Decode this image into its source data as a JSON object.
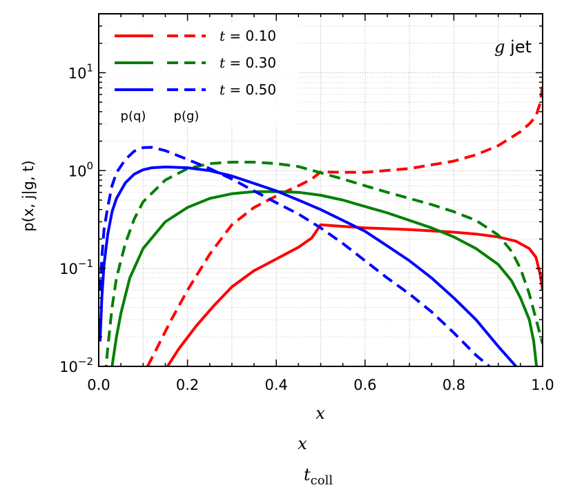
{
  "chart_data": {
    "type": "line",
    "title": "",
    "xlabel": "x",
    "ylabel": "p(x, j|g, t)",
    "xscale": "linear",
    "yscale": "log",
    "xlim": [
      0.0,
      1.0
    ],
    "ylim": [
      0.01,
      40
    ],
    "grid": true,
    "x_ticks": [
      0.0,
      0.2,
      0.4,
      0.6,
      0.8,
      1.0
    ],
    "x_tick_labels": [
      "0.0",
      "0.2",
      "0.4",
      "0.6",
      "0.8",
      "1.0"
    ],
    "y_ticks": [
      0.01,
      0.1,
      1,
      10
    ],
    "y_tick_labels": [
      {
        "base": "10",
        "exp": "−2"
      },
      {
        "base": "10",
        "exp": "−1"
      },
      {
        "base": "10",
        "exp": "0"
      },
      {
        "base": "10",
        "exp": "1"
      }
    ],
    "annotation": "g jet",
    "legend_position": "top-left",
    "legend_column_labels": [
      "p(q)",
      "p(g)"
    ],
    "extra_labels": [
      "x",
      "t_coll"
    ],
    "series": [
      {
        "name": "t = 0.10",
        "legend_label": "t = 0.10",
        "parton": "q",
        "style": "solid",
        "color": "#ff0000",
        "x": [
          0.155,
          0.18,
          0.22,
          0.26,
          0.3,
          0.35,
          0.4,
          0.45,
          0.48,
          0.5,
          0.52,
          0.6,
          0.7,
          0.8,
          0.85,
          0.9,
          0.94,
          0.97,
          0.985,
          0.995,
          1.0
        ],
        "y": [
          0.01,
          0.015,
          0.026,
          0.042,
          0.065,
          0.095,
          0.125,
          0.165,
          0.205,
          0.28,
          0.275,
          0.26,
          0.25,
          0.235,
          0.225,
          0.21,
          0.19,
          0.16,
          0.13,
          0.085,
          0.06
        ]
      },
      {
        "name": "t = 0.10",
        "legend_label": "t = 0.10",
        "parton": "g",
        "style": "dashed",
        "color": "#ff0000",
        "x": [
          0.11,
          0.13,
          0.16,
          0.2,
          0.25,
          0.3,
          0.35,
          0.4,
          0.45,
          0.48,
          0.5,
          0.55,
          0.6,
          0.7,
          0.8,
          0.85,
          0.9,
          0.95,
          0.97,
          0.985,
          0.995,
          1.0
        ],
        "y": [
          0.01,
          0.015,
          0.028,
          0.06,
          0.14,
          0.28,
          0.42,
          0.55,
          0.7,
          0.82,
          0.97,
          0.96,
          0.96,
          1.05,
          1.25,
          1.45,
          1.8,
          2.5,
          3.0,
          3.6,
          5.0,
          7.5
        ]
      },
      {
        "name": "t = 0.30",
        "legend_label": "t = 0.30",
        "parton": "q",
        "style": "solid",
        "color": "#008000",
        "x": [
          0.025,
          0.03,
          0.04,
          0.05,
          0.07,
          0.1,
          0.15,
          0.2,
          0.25,
          0.3,
          0.35,
          0.4,
          0.45,
          0.5,
          0.55,
          0.6,
          0.65,
          0.7,
          0.75,
          0.8,
          0.85,
          0.9,
          0.93,
          0.95,
          0.97,
          0.98,
          0.99
        ],
        "y": [
          0.008,
          0.01,
          0.02,
          0.035,
          0.08,
          0.16,
          0.3,
          0.42,
          0.52,
          0.58,
          0.61,
          0.61,
          0.6,
          0.56,
          0.5,
          0.43,
          0.37,
          0.31,
          0.26,
          0.21,
          0.16,
          0.11,
          0.075,
          0.05,
          0.03,
          0.018,
          0.007
        ]
      },
      {
        "name": "t = 0.30",
        "legend_label": "t = 0.30",
        "parton": "g",
        "style": "dashed",
        "color": "#008000",
        "x": [
          0.015,
          0.02,
          0.03,
          0.04,
          0.06,
          0.08,
          0.1,
          0.15,
          0.2,
          0.25,
          0.3,
          0.35,
          0.4,
          0.45,
          0.5,
          0.55,
          0.6,
          0.65,
          0.7,
          0.75,
          0.8,
          0.85,
          0.9,
          0.93,
          0.95,
          0.97,
          0.99,
          1.0
        ],
        "y": [
          0.008,
          0.015,
          0.04,
          0.08,
          0.18,
          0.32,
          0.48,
          0.8,
          1.05,
          1.18,
          1.22,
          1.22,
          1.18,
          1.1,
          0.95,
          0.82,
          0.7,
          0.6,
          0.52,
          0.45,
          0.38,
          0.31,
          0.22,
          0.15,
          0.1,
          0.055,
          0.025,
          0.017
        ]
      },
      {
        "name": "t = 0.50",
        "legend_label": "t = 0.50",
        "parton": "q",
        "style": "solid",
        "color": "#0000ff",
        "x": [
          0.003,
          0.007,
          0.012,
          0.02,
          0.03,
          0.04,
          0.06,
          0.08,
          0.1,
          0.12,
          0.15,
          0.2,
          0.25,
          0.3,
          0.35,
          0.4,
          0.45,
          0.5,
          0.55,
          0.6,
          0.65,
          0.7,
          0.75,
          0.8,
          0.85,
          0.9,
          0.94
        ],
        "y": [
          0.018,
          0.05,
          0.11,
          0.22,
          0.38,
          0.52,
          0.75,
          0.92,
          1.02,
          1.07,
          1.09,
          1.07,
          1.0,
          0.88,
          0.74,
          0.62,
          0.5,
          0.4,
          0.31,
          0.24,
          0.17,
          0.12,
          0.08,
          0.05,
          0.03,
          0.016,
          0.01
        ]
      },
      {
        "name": "t = 0.50",
        "legend_label": "t = 0.50",
        "parton": "g",
        "style": "dashed",
        "color": "#0000ff",
        "x": [
          0.003,
          0.007,
          0.012,
          0.02,
          0.03,
          0.04,
          0.06,
          0.08,
          0.1,
          0.12,
          0.15,
          0.2,
          0.25,
          0.3,
          0.35,
          0.4,
          0.45,
          0.5,
          0.55,
          0.6,
          0.65,
          0.7,
          0.75,
          0.8,
          0.85,
          0.88
        ],
        "y": [
          0.06,
          0.13,
          0.25,
          0.42,
          0.7,
          0.95,
          1.3,
          1.58,
          1.72,
          1.73,
          1.6,
          1.3,
          1.05,
          0.82,
          0.62,
          0.47,
          0.36,
          0.26,
          0.18,
          0.12,
          0.08,
          0.055,
          0.036,
          0.022,
          0.013,
          0.01
        ]
      }
    ]
  }
}
